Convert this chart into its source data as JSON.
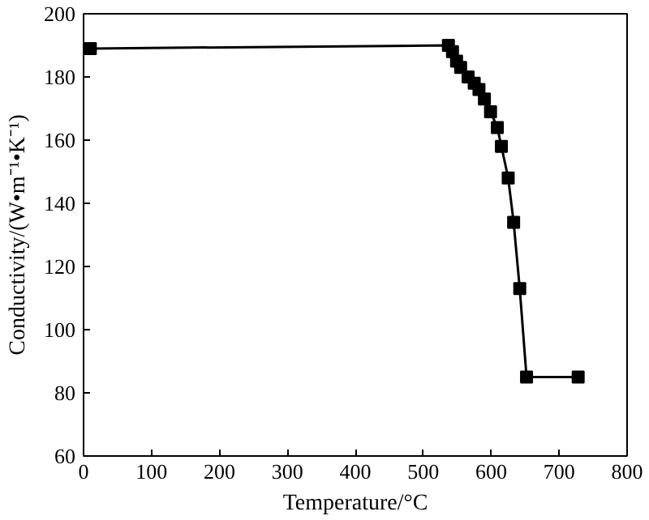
{
  "chart_data": {
    "type": "line",
    "xlabel": "Temperature/°C",
    "ylabel": "Conductivity/(W•m⁻¹•K⁻¹)",
    "x": [
      10,
      537,
      543,
      549,
      555,
      566,
      575,
      582,
      590,
      599,
      609,
      615,
      625,
      633,
      642,
      652,
      728
    ],
    "series": [
      {
        "color": "#000000",
        "values": [
          189,
          190,
          188,
          185,
          183,
          180,
          178,
          176,
          173,
          169,
          164,
          158,
          148,
          134,
          113,
          85,
          85
        ]
      }
    ],
    "xlim": [
      0,
      800
    ],
    "xticks": [
      0,
      100,
      200,
      300,
      400,
      500,
      600,
      700,
      800
    ],
    "ylim": [
      60,
      200
    ],
    "yticks": [
      60,
      80,
      100,
      120,
      140,
      160,
      180,
      200
    ],
    "grid": false,
    "marker": "square",
    "line_style": "solid"
  }
}
